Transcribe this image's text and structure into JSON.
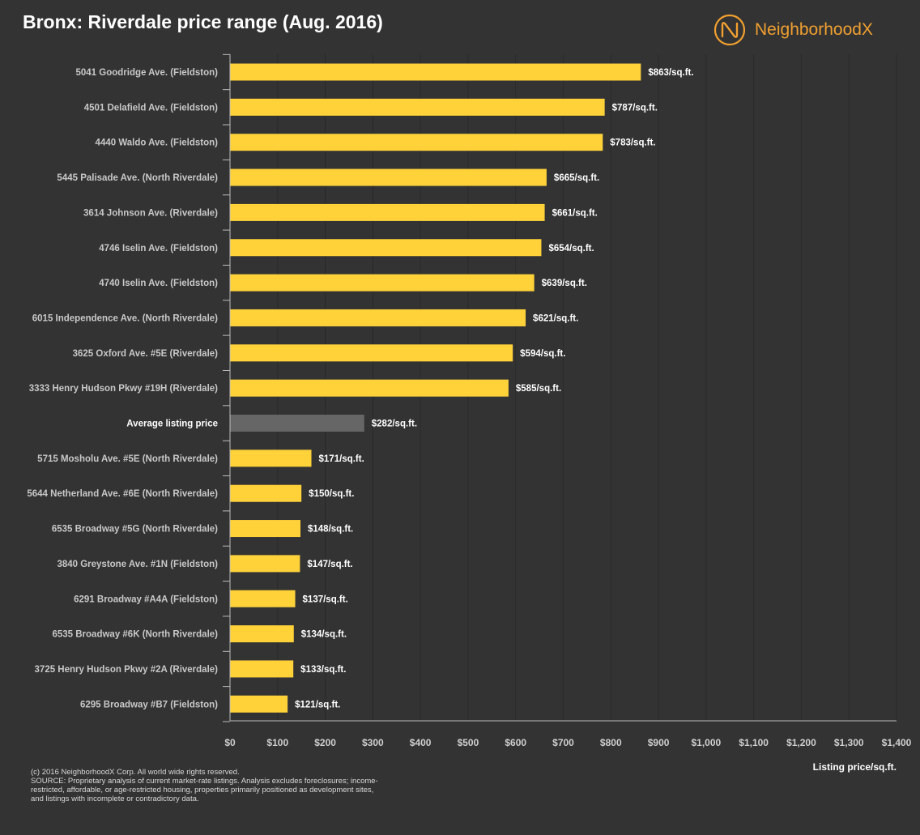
{
  "header": {
    "title": "Bronx: Riverdale price range (Aug. 2016)",
    "brand": "NeighborhoodX",
    "brand_color": "#f0a030"
  },
  "chart_data": {
    "type": "bar",
    "orientation": "horizontal",
    "title": "Bronx: Riverdale price range (Aug. 2016)",
    "xlabel": "Listing price/sq.ft.",
    "ylabel": "",
    "xlim": [
      0,
      1400
    ],
    "x_ticks": [
      0,
      100,
      200,
      300,
      400,
      500,
      600,
      700,
      800,
      900,
      1000,
      1100,
      1200,
      1300,
      1400
    ],
    "x_tick_labels": [
      "$0",
      "$100",
      "$200",
      "$300",
      "$400",
      "$500",
      "$600",
      "$700",
      "$800",
      "$900",
      "$1,000",
      "$1,100",
      "$1,200",
      "$1,300",
      "$1,400"
    ],
    "grid": "vertical",
    "value_suffix": "/sq.ft.",
    "bar_color": "#ffd23a",
    "highlight_color": "#666666",
    "categories": [
      "5041 Goodridge Ave. (Fieldston)",
      "4501 Delafield Ave. (Fieldston)",
      "4440 Waldo Ave. (Fieldston)",
      "5445 Palisade Ave. (North Riverdale)",
      "3614 Johnson Ave. (Riverdale)",
      "4746 Iselin Ave. (Fieldston)",
      "4740 Iselin Ave. (Fieldston)",
      "6015 Independence Ave. (North Riverdale)",
      "3625 Oxford Ave. #5E (Riverdale)",
      "3333 Henry Hudson Pkwy #19H (Riverdale)",
      "Average listing price",
      "5715 Mosholu Ave. #5E (North Riverdale)",
      "5644 Netherland Ave. #6E (North Riverdale)",
      "6535 Broadway #5G (North Riverdale)",
      "3840 Greystone Ave. #1N (Fieldston)",
      "6291 Broadway #A4A (Fieldston)",
      "6535 Broadway #6K (North Riverdale)",
      "3725 Henry Hudson Pkwy #2A (Riverdale)",
      "6295 Broadway #B7 (Fieldston)"
    ],
    "values": [
      863,
      787,
      783,
      665,
      661,
      654,
      639,
      621,
      594,
      585,
      282,
      171,
      150,
      148,
      147,
      137,
      134,
      133,
      121
    ],
    "value_labels": [
      "$863/sq.ft.",
      "$787/sq.ft.",
      "$783/sq.ft.",
      "$665/sq.ft.",
      "$661/sq.ft.",
      "$654/sq.ft.",
      "$639/sq.ft.",
      "$621/sq.ft.",
      "$594/sq.ft.",
      "$585/sq.ft.",
      "$282/sq.ft.",
      "$171/sq.ft.",
      "$150/sq.ft.",
      "$148/sq.ft.",
      "$147/sq.ft.",
      "$137/sq.ft.",
      "$134/sq.ft.",
      "$133/sq.ft.",
      "$121/sq.ft."
    ],
    "highlight_index": 10
  },
  "footnote": {
    "line1": "(c) 2016 NeighborhoodX Corp. All world wide rights reserved.",
    "line2": "SOURCE: Proprietary analysis of current market-rate listings. Analysis excludes foreclosures; income-restricted, affordable, or age-restricted housing, properties primarily positioned as development sites, and listings with incomplete or contradictory data."
  }
}
